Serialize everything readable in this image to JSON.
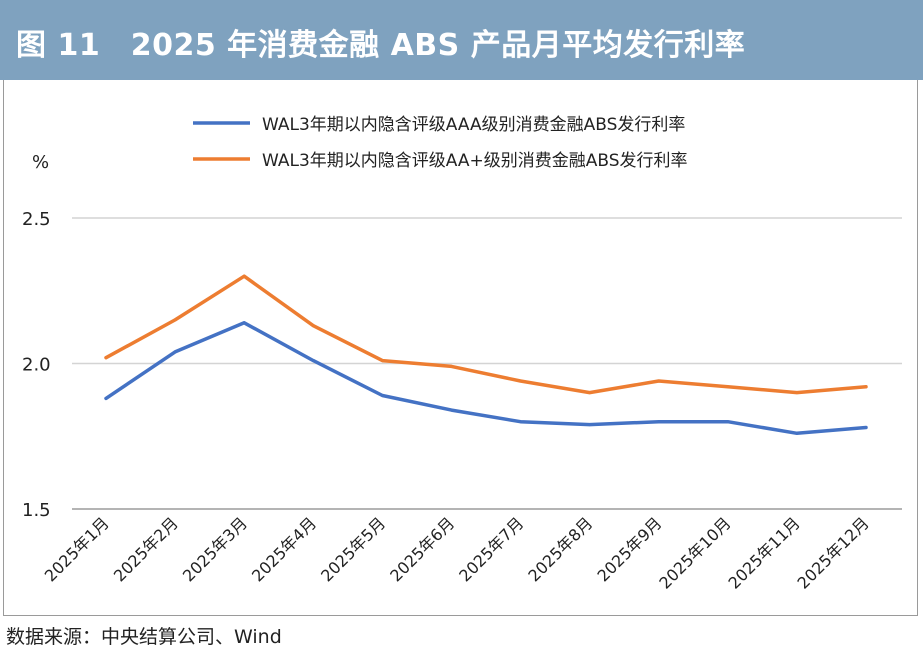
{
  "header": {
    "title": "图 11　2025 年消费金融 ABS 产品月平均发行利率"
  },
  "chart_data": {
    "type": "line",
    "title": "图 11　2025 年消费金融 ABS 产品月平均发行利率",
    "ylabel": "%",
    "xlabel": "",
    "ylim": [
      1.5,
      2.5
    ],
    "yticks": [
      "1.5",
      "2.0",
      "2.5"
    ],
    "grid": true,
    "legend_position": "top",
    "categories": [
      "2025年1月",
      "2025年2月",
      "2025年3月",
      "2025年4月",
      "2025年5月",
      "2025年6月",
      "2025年7月",
      "2025年8月",
      "2025年9月",
      "2025年10月",
      "2025年11月",
      "2025年12月"
    ],
    "series": [
      {
        "name": "WAL3年期以内隐含评级AAA级别消费金融ABS发行利率",
        "color": "#4472c4",
        "values": [
          1.88,
          2.04,
          2.14,
          2.01,
          1.89,
          1.84,
          1.8,
          1.79,
          1.8,
          1.8,
          1.76,
          1.78
        ]
      },
      {
        "name": "WAL3年期以内隐含评级AA+级别消费金融ABS发行利率",
        "color": "#ed7d31",
        "values": [
          2.02,
          2.15,
          2.3,
          2.13,
          2.01,
          1.99,
          1.94,
          1.9,
          1.94,
          1.92,
          1.9,
          1.92
        ]
      }
    ]
  },
  "footer": {
    "source": "数据来源：中央结算公司、Wind"
  }
}
